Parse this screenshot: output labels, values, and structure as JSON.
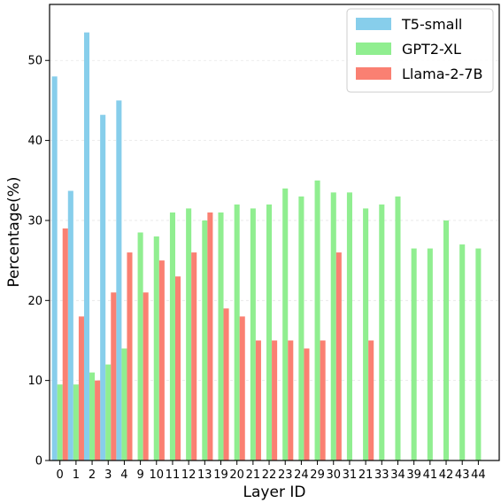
{
  "chart_data": {
    "type": "bar",
    "title": "",
    "xlabel": "Layer ID",
    "ylabel": "Percentage(%)",
    "ylim": [
      0,
      57
    ],
    "yticks": [
      0,
      10,
      20,
      30,
      40,
      50
    ],
    "grid": "horizontal dashed, light",
    "legend_position": "top-right",
    "categories": [
      "0",
      "1",
      "2",
      "3",
      "4",
      "9",
      "10",
      "11",
      "12",
      "13",
      "19",
      "20",
      "21",
      "22",
      "23",
      "24",
      "29",
      "30",
      "31",
      "21",
      "33",
      "34",
      "39",
      "41",
      "42",
      "43",
      "44"
    ],
    "series": [
      {
        "name": "T5-small",
        "color": "#87CEEB",
        "values": [
          48,
          33.7,
          53.5,
          43.2,
          45,
          null,
          null,
          null,
          null,
          null,
          null,
          null,
          null,
          null,
          null,
          null,
          null,
          null,
          null,
          null,
          null,
          null,
          null,
          null,
          null,
          null,
          null
        ]
      },
      {
        "name": "GPT2-XL",
        "color": "#90EE90",
        "values": [
          9.5,
          9.5,
          11,
          12,
          14,
          28.5,
          28,
          31,
          31.5,
          30,
          31,
          32,
          31.5,
          32,
          34,
          33,
          35,
          33.5,
          33.5,
          31.5,
          32,
          33,
          26.5,
          26.5,
          30,
          27,
          26.5
        ]
      },
      {
        "name": "Llama-2-7B",
        "color": "#FA8072",
        "values": [
          29,
          18,
          10,
          21,
          26,
          21,
          25,
          23,
          26,
          31,
          19,
          18,
          15,
          15,
          15,
          14,
          15,
          26,
          null,
          15,
          null,
          null,
          null,
          null,
          null,
          null,
          null
        ]
      }
    ]
  }
}
